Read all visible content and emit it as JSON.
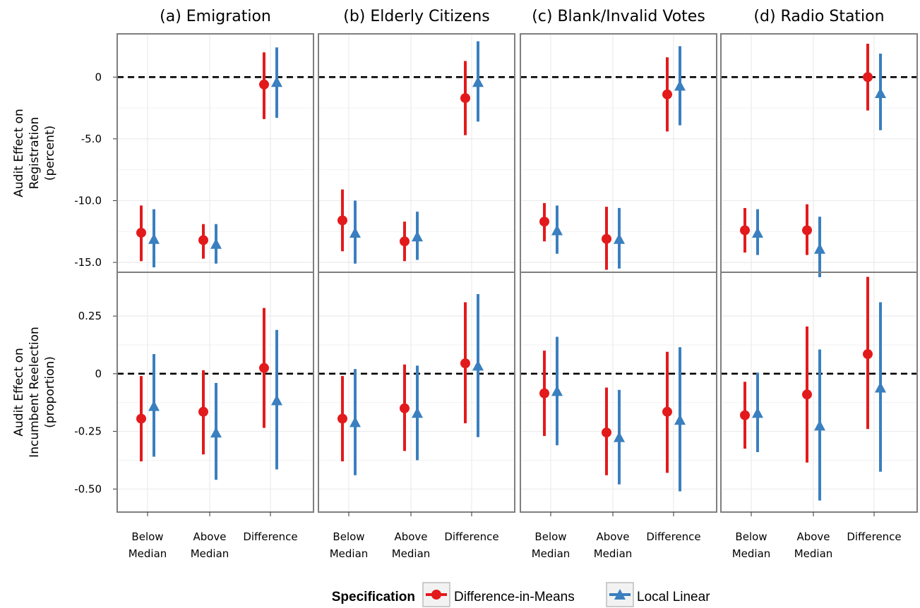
{
  "chart_data": {
    "type": "scatter",
    "subtype": "pointrange facet grid",
    "facets": [
      {
        "title": "(a) Emigration"
      },
      {
        "title": "(b) Elderly Citizens"
      },
      {
        "title": "(c) Blank/Invalid Votes"
      },
      {
        "title": "(d) Radio Station"
      }
    ],
    "categories": [
      {
        "line1": "Below",
        "line2": "Median"
      },
      {
        "line1": "Above",
        "line2": "Median"
      },
      {
        "line1": "Difference",
        "line2": ""
      }
    ],
    "rows": [
      {
        "ylabel_lines": [
          "Audit Effect on",
          "Registration",
          "(percent)"
        ],
        "ylim": [
          -15.8,
          3.5
        ],
        "ticks": [
          {
            "value": 0,
            "label": "0"
          },
          {
            "value": -5,
            "label": "-5.0"
          },
          {
            "value": -10,
            "label": "-10.0"
          },
          {
            "value": -15,
            "label": "-15.0"
          }
        ],
        "reference_line": 0,
        "facets": [
          {
            "series": [
              {
                "name": "Difference-in-Means",
                "points": [
                  {
                    "y": -12.6,
                    "lo": -14.9,
                    "hi": -10.4
                  },
                  {
                    "y": -13.2,
                    "lo": -14.7,
                    "hi": -11.9
                  },
                  {
                    "y": -0.6,
                    "lo": -3.4,
                    "hi": 2.0
                  }
                ]
              },
              {
                "name": "Local Linear",
                "points": [
                  {
                    "y": -13.1,
                    "lo": -15.4,
                    "hi": -10.7
                  },
                  {
                    "y": -13.5,
                    "lo": -15.1,
                    "hi": -11.9
                  },
                  {
                    "y": -0.4,
                    "lo": -3.3,
                    "hi": 2.4
                  }
                ]
              }
            ]
          },
          {
            "series": [
              {
                "name": "Difference-in-Means",
                "points": [
                  {
                    "y": -11.6,
                    "lo": -14.1,
                    "hi": -9.1
                  },
                  {
                    "y": -13.3,
                    "lo": -14.9,
                    "hi": -11.7
                  },
                  {
                    "y": -1.7,
                    "lo": -4.7,
                    "hi": 1.3
                  }
                ]
              },
              {
                "name": "Local Linear",
                "points": [
                  {
                    "y": -12.6,
                    "lo": -15.1,
                    "hi": -10.0
                  },
                  {
                    "y": -12.9,
                    "lo": -14.8,
                    "hi": -10.9
                  },
                  {
                    "y": -0.4,
                    "lo": -3.6,
                    "hi": 2.9
                  }
                ]
              }
            ]
          },
          {
            "series": [
              {
                "name": "Difference-in-Means",
                "points": [
                  {
                    "y": -11.7,
                    "lo": -13.3,
                    "hi": -10.2
                  },
                  {
                    "y": -13.1,
                    "lo": -15.6,
                    "hi": -10.5
                  },
                  {
                    "y": -1.4,
                    "lo": -4.4,
                    "hi": 1.6
                  }
                ]
              },
              {
                "name": "Local Linear",
                "points": [
                  {
                    "y": -12.4,
                    "lo": -14.3,
                    "hi": -10.4
                  },
                  {
                    "y": -13.1,
                    "lo": -15.5,
                    "hi": -10.6
                  },
                  {
                    "y": -0.7,
                    "lo": -3.9,
                    "hi": 2.5
                  }
                ]
              }
            ]
          },
          {
            "series": [
              {
                "name": "Difference-in-Means",
                "points": [
                  {
                    "y": -12.4,
                    "lo": -14.2,
                    "hi": -10.6
                  },
                  {
                    "y": -12.4,
                    "lo": -14.4,
                    "hi": -10.3
                  },
                  {
                    "y": 0.0,
                    "lo": -2.7,
                    "hi": 2.7
                  }
                ]
              },
              {
                "name": "Local Linear",
                "points": [
                  {
                    "y": -12.6,
                    "lo": -14.4,
                    "hi": -10.7
                  },
                  {
                    "y": -13.9,
                    "lo": -16.2,
                    "hi": -11.3
                  },
                  {
                    "y": -1.3,
                    "lo": -4.3,
                    "hi": 1.9
                  }
                ]
              }
            ]
          }
        ]
      },
      {
        "ylabel_lines": [
          "Audit Effect on",
          "Incumbent Reelection",
          "(proportion)"
        ],
        "ylim": [
          -0.6,
          0.44
        ],
        "ticks": [
          {
            "value": 0.25,
            "label": "0.25"
          },
          {
            "value": 0,
            "label": "0"
          },
          {
            "value": -0.25,
            "label": "-0.25"
          },
          {
            "value": -0.5,
            "label": "-0.50"
          }
        ],
        "reference_line": 0,
        "facets": [
          {
            "series": [
              {
                "name": "Difference-in-Means",
                "points": [
                  {
                    "y": -0.195,
                    "lo": -0.38,
                    "hi": -0.01
                  },
                  {
                    "y": -0.165,
                    "lo": -0.35,
                    "hi": 0.015
                  },
                  {
                    "y": 0.025,
                    "lo": -0.235,
                    "hi": 0.285
                  }
                ]
              },
              {
                "name": "Local Linear",
                "points": [
                  {
                    "y": -0.14,
                    "lo": -0.36,
                    "hi": 0.085
                  },
                  {
                    "y": -0.255,
                    "lo": -0.46,
                    "hi": -0.04
                  },
                  {
                    "y": -0.115,
                    "lo": -0.415,
                    "hi": 0.19
                  }
                ]
              }
            ]
          },
          {
            "series": [
              {
                "name": "Difference-in-Means",
                "points": [
                  {
                    "y": -0.195,
                    "lo": -0.38,
                    "hi": -0.01
                  },
                  {
                    "y": -0.15,
                    "lo": -0.335,
                    "hi": 0.04
                  },
                  {
                    "y": 0.045,
                    "lo": -0.215,
                    "hi": 0.31
                  }
                ]
              },
              {
                "name": "Local Linear",
                "points": [
                  {
                    "y": -0.21,
                    "lo": -0.44,
                    "hi": 0.02
                  },
                  {
                    "y": -0.17,
                    "lo": -0.375,
                    "hi": 0.035
                  },
                  {
                    "y": 0.035,
                    "lo": -0.275,
                    "hi": 0.345
                  }
                ]
              }
            ]
          },
          {
            "series": [
              {
                "name": "Difference-in-Means",
                "points": [
                  {
                    "y": -0.085,
                    "lo": -0.27,
                    "hi": 0.1
                  },
                  {
                    "y": -0.255,
                    "lo": -0.44,
                    "hi": -0.06
                  },
                  {
                    "y": -0.165,
                    "lo": -0.43,
                    "hi": 0.095
                  }
                ]
              },
              {
                "name": "Local Linear",
                "points": [
                  {
                    "y": -0.075,
                    "lo": -0.31,
                    "hi": 0.16
                  },
                  {
                    "y": -0.275,
                    "lo": -0.48,
                    "hi": -0.07
                  },
                  {
                    "y": -0.2,
                    "lo": -0.51,
                    "hi": 0.115
                  }
                ]
              }
            ]
          },
          {
            "series": [
              {
                "name": "Difference-in-Means",
                "points": [
                  {
                    "y": -0.18,
                    "lo": -0.325,
                    "hi": -0.035
                  },
                  {
                    "y": -0.09,
                    "lo": -0.385,
                    "hi": 0.205
                  },
                  {
                    "y": 0.085,
                    "lo": -0.24,
                    "hi": 0.42
                  }
                ]
              },
              {
                "name": "Local Linear",
                "points": [
                  {
                    "y": -0.17,
                    "lo": -0.34,
                    "hi": 0.005
                  },
                  {
                    "y": -0.225,
                    "lo": -0.55,
                    "hi": 0.105
                  },
                  {
                    "y": -0.06,
                    "lo": -0.425,
                    "hi": 0.31
                  }
                ]
              }
            ]
          }
        ]
      }
    ],
    "legend": {
      "title": "Specification",
      "position": "bottom",
      "items": [
        {
          "name": "Difference-in-Means",
          "shape": "circle",
          "color": "#E31A1C"
        },
        {
          "name": "Local Linear",
          "shape": "triangle",
          "color": "#3A7FBF"
        }
      ]
    },
    "grid": true,
    "colors": {
      "red": "#E31A1C",
      "blue": "#3A7FBF",
      "panel_border": "#7F7F7F",
      "grid": "#EBEBEB"
    }
  }
}
